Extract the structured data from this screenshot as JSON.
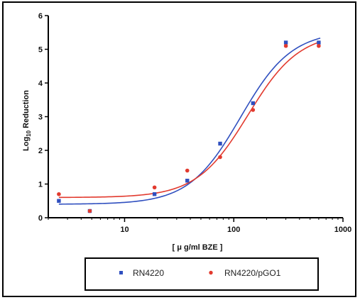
{
  "chart_data": {
    "type": "scatter",
    "title": "",
    "xlabel": "[ μ g/ml BZE ]",
    "ylabel": "Log",
    "ylabel_subscript": "10",
    "ylabel_suffix": " Reduction",
    "x_scale": "log",
    "xlim": [
      2,
      1000
    ],
    "ylim": [
      0,
      6
    ],
    "x_ticks": [
      10,
      100,
      1000
    ],
    "x_tick_labels": [
      "10",
      "100",
      "1000"
    ],
    "y_ticks": [
      0,
      1,
      2,
      3,
      4,
      5,
      6
    ],
    "y_tick_labels": [
      "0",
      "1",
      "2",
      "3",
      "4",
      "5",
      "6"
    ],
    "grid": false,
    "legend_position": "bottom",
    "series": [
      {
        "name": "RN4220",
        "color": "#2f4fbf",
        "marker": "square",
        "x": [
          2.5,
          4.8,
          18.8,
          37.5,
          75,
          150,
          300,
          600
        ],
        "y": [
          0.5,
          0.2,
          0.7,
          1.1,
          2.2,
          3.4,
          5.2,
          5.2
        ],
        "fit_curve": {
          "bottom": 0.4,
          "top": 5.55,
          "ec50": 115,
          "hill": 1.85
        }
      },
      {
        "name": "RN4220/pGO1",
        "color": "#e23a2e",
        "marker": "circle",
        "x": [
          2.5,
          4.8,
          18.8,
          37.5,
          75,
          150,
          300,
          600
        ],
        "y": [
          0.7,
          0.2,
          0.9,
          1.4,
          1.8,
          3.2,
          5.1,
          5.1
        ],
        "fit_curve": {
          "bottom": 0.6,
          "top": 5.5,
          "ec50": 135,
          "hill": 1.85
        }
      }
    ]
  }
}
